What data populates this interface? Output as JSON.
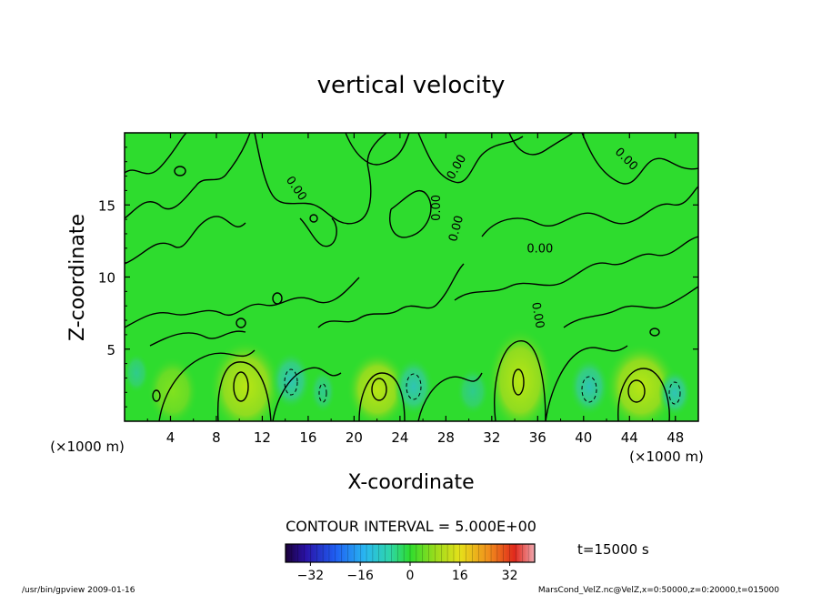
{
  "chart_data": {
    "type": "heatmap",
    "title": "vertical velocity",
    "xlabel": "X-coordinate",
    "ylabel": "Z-coordinate",
    "x_unit": "(×1000 m)",
    "y_unit": "(×1000 m)",
    "xlim": [
      0,
      50
    ],
    "ylim": [
      0,
      20
    ],
    "x_ticks": [
      "4",
      "8",
      "12",
      "16",
      "20",
      "24",
      "28",
      "32",
      "36",
      "40",
      "44",
      "48"
    ],
    "y_ticks": [
      "5",
      "10",
      "15"
    ],
    "contour_labels": [
      "0.00",
      "0.00",
      "0.00",
      "0.00",
      "0.00",
      "0.00",
      "0.00"
    ],
    "contour_interval_text": "CONTOUR INTERVAL = 5.000E+00",
    "time_label": "t=15000 s",
    "colorbar": {
      "range": [
        -40,
        40
      ],
      "ticks": [
        "−32",
        "−16",
        "0",
        "16",
        "32"
      ]
    },
    "footer_left": "/usr/bin/gpview   2009-01-16",
    "footer_right": "MarsCond_VelZ.nc@VelZ,x=0:50000,z=0:20000,t=015000",
    "colors": {
      "field": "#2edc2e",
      "warm": "#a8e01e",
      "cool": "#31c9a8",
      "contour": "#000000"
    }
  }
}
